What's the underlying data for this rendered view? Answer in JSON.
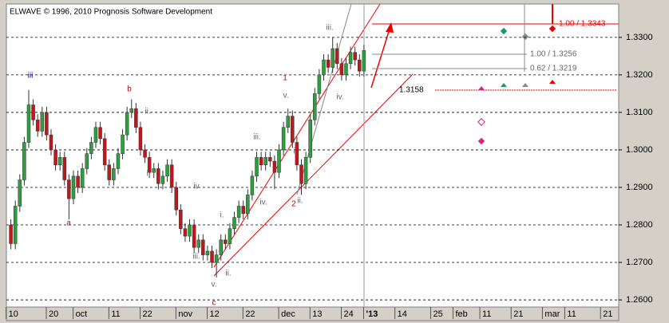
{
  "chart_data": {
    "type": "candlestick",
    "title": "ELWAVE © 1996, 2010 Prognosis Software Development",
    "x": [
      0,
      1,
      2,
      3,
      4,
      5,
      6,
      7,
      8,
      9,
      10,
      11,
      12,
      13,
      14,
      15,
      16,
      17,
      18,
      19,
      20,
      21,
      22,
      23,
      24,
      25,
      26,
      27,
      28,
      29,
      30,
      31,
      32,
      33,
      34,
      35,
      36,
      37,
      38,
      39,
      40,
      41,
      42,
      43,
      44,
      45,
      46,
      47,
      48,
      49,
      50,
      51,
      52,
      53,
      54,
      55,
      56,
      57,
      58,
      59,
      60,
      61,
      62,
      63,
      64,
      65,
      66,
      67,
      68,
      69,
      70,
      71,
      72,
      73,
      74,
      75,
      76,
      77,
      78,
      79
    ],
    "open": [
      1.28,
      1.275,
      1.285,
      1.292,
      1.302,
      1.312,
      1.308,
      1.305,
      1.31,
      1.304,
      1.3,
      1.296,
      1.298,
      1.292,
      1.287,
      1.293,
      1.29,
      1.295,
      1.299,
      1.302,
      1.306,
      1.303,
      1.296,
      1.292,
      1.295,
      1.299,
      1.304,
      1.31,
      1.311,
      1.306,
      1.3,
      1.298,
      1.294,
      1.295,
      1.291,
      1.293,
      1.296,
      1.29,
      1.284,
      1.279,
      1.277,
      1.28,
      1.274,
      1.276,
      1.272,
      1.273,
      1.27,
      1.272,
      1.276,
      1.275,
      1.279,
      1.282,
      1.285,
      1.283,
      1.288,
      1.293,
      1.298,
      1.296,
      1.298,
      1.297,
      1.294,
      1.3,
      1.306,
      1.309,
      1.302,
      1.296,
      1.291,
      1.298,
      1.308,
      1.315,
      1.32,
      1.324,
      1.322,
      1.327,
      1.323,
      1.32,
      1.323,
      1.326,
      1.324,
      1.321
    ],
    "high": [
      1.2815,
      1.2865,
      1.2935,
      1.3035,
      1.316,
      1.3135,
      1.3095,
      1.3115,
      1.3115,
      1.3055,
      1.3015,
      1.2995,
      1.2995,
      1.2935,
      1.2945,
      1.2945,
      1.2965,
      1.3005,
      1.3035,
      1.3075,
      1.3075,
      1.3045,
      1.2975,
      1.2965,
      1.3005,
      1.3055,
      1.3115,
      1.3135,
      1.3125,
      1.3075,
      1.3015,
      1.2995,
      1.2965,
      1.2965,
      1.2945,
      1.2975,
      1.2975,
      1.2915,
      1.2855,
      1.2805,
      1.2815,
      1.2815,
      1.2775,
      1.2775,
      1.2745,
      1.2745,
      1.2735,
      1.2775,
      1.2775,
      1.2805,
      1.2835,
      1.2865,
      1.2865,
      1.2895,
      1.2945,
      1.2995,
      1.2995,
      1.2995,
      1.2995,
      1.2985,
      1.3015,
      1.3075,
      1.311,
      1.3105,
      1.3035,
      1.2975,
      1.2995,
      1.3095,
      1.3165,
      1.3215,
      1.3255,
      1.3255,
      1.33,
      1.3285,
      1.3245,
      1.3245,
      1.3275,
      1.3275,
      1.3255,
      1.328
    ],
    "low": [
      1.2735,
      1.2735,
      1.2835,
      1.2905,
      1.3005,
      1.3065,
      1.3035,
      1.3035,
      1.3025,
      1.2985,
      1.2945,
      1.2945,
      1.2905,
      1.2815,
      1.2855,
      1.2885,
      1.2885,
      1.2935,
      1.2975,
      1.3005,
      1.3015,
      1.2945,
      1.2905,
      1.2905,
      1.2935,
      1.2975,
      1.3025,
      1.3085,
      1.3045,
      1.2985,
      1.2965,
      1.2925,
      1.2925,
      1.2895,
      1.2895,
      1.2915,
      1.2885,
      1.2825,
      1.2775,
      1.2755,
      1.2755,
      1.2725,
      1.2725,
      1.2705,
      1.2705,
      1.2685,
      1.266,
      1.2705,
      1.2735,
      1.2735,
      1.2775,
      1.2805,
      1.2815,
      1.2815,
      1.2865,
      1.2915,
      1.2945,
      1.2945,
      1.2955,
      1.2895,
      1.2925,
      1.2985,
      1.3045,
      1.3005,
      1.2945,
      1.288,
      1.2895,
      1.2965,
      1.3065,
      1.3135,
      1.3185,
      1.3205,
      1.3205,
      1.3215,
      1.3185,
      1.3185,
      1.3215,
      1.3225,
      1.3195,
      1.3195
    ],
    "close": [
      1.275,
      1.285,
      1.292,
      1.302,
      1.312,
      1.308,
      1.305,
      1.31,
      1.304,
      1.3,
      1.296,
      1.298,
      1.292,
      1.287,
      1.293,
      1.29,
      1.295,
      1.299,
      1.302,
      1.306,
      1.303,
      1.296,
      1.292,
      1.295,
      1.299,
      1.304,
      1.31,
      1.311,
      1.306,
      1.3,
      1.298,
      1.294,
      1.295,
      1.291,
      1.293,
      1.296,
      1.29,
      1.284,
      1.279,
      1.277,
      1.28,
      1.274,
      1.276,
      1.272,
      1.273,
      1.27,
      1.272,
      1.276,
      1.275,
      1.279,
      1.282,
      1.285,
      1.283,
      1.288,
      1.293,
      1.298,
      1.296,
      1.298,
      1.297,
      1.294,
      1.3,
      1.306,
      1.309,
      1.302,
      1.296,
      1.291,
      1.298,
      1.308,
      1.315,
      1.32,
      1.324,
      1.322,
      1.327,
      1.323,
      1.32,
      1.323,
      1.326,
      1.324,
      1.321,
      1.3265
    ],
    "up_color": "#2e9e3e",
    "down_color": "#c0161c",
    "xlim": [
      -1,
      136
    ],
    "xticks": [
      {
        "value": 0,
        "label": "10"
      },
      {
        "value": 9,
        "label": "20"
      },
      {
        "value": 15,
        "label": "oct"
      },
      {
        "value": 23,
        "label": "11"
      },
      {
        "value": 30,
        "label": "22"
      },
      {
        "value": 38,
        "label": "nov"
      },
      {
        "value": 45,
        "label": "12"
      },
      {
        "value": 53,
        "label": "22"
      },
      {
        "value": 61,
        "label": "dec"
      },
      {
        "value": 68,
        "label": "13"
      },
      {
        "value": 75,
        "label": "24"
      },
      {
        "value": 80,
        "label": "'13"
      },
      {
        "value": 87,
        "label": "14"
      },
      {
        "value": 95,
        "label": "25"
      },
      {
        "value": 100,
        "label": "feb"
      },
      {
        "value": 106,
        "label": "11"
      },
      {
        "value": 113,
        "label": "21"
      },
      {
        "value": 120,
        "label": "mar"
      },
      {
        "value": 125,
        "label": "11"
      },
      {
        "value": 133,
        "label": "21"
      }
    ],
    "ylim": [
      1.2581,
      1.3389
    ],
    "yticks": [
      {
        "value": 1.26,
        "label": "1.2600"
      },
      {
        "value": 1.27,
        "label": "1.2700"
      },
      {
        "value": 1.28,
        "label": "1.2800"
      },
      {
        "value": 1.29,
        "label": "1.2900"
      },
      {
        "value": 1.3,
        "label": "1.3000"
      },
      {
        "value": 1.31,
        "label": "1.3100"
      },
      {
        "value": 1.32,
        "label": "1.3200"
      },
      {
        "value": 1.33,
        "label": "1.3300"
      }
    ],
    "grid": true,
    "annotations": [
      "iii",
      "b",
      "a",
      "1",
      "2",
      "c",
      "iii.",
      "ii.",
      "i.",
      "iv",
      "i.",
      "iii.",
      "v.",
      "ii.",
      "iii.",
      "iv.",
      "v.",
      "i.",
      "ii.",
      "iv."
    ],
    "target_labels": [
      "1.00 / 1.3343",
      "1.00 / 1.3256",
      "0.62 / 1.3219",
      "1.3158"
    ]
  }
}
